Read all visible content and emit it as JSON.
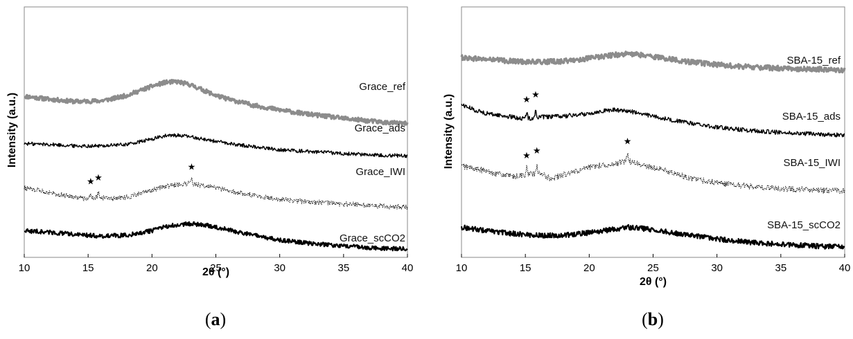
{
  "chart_data": [
    {
      "type": "line",
      "panel_label": "a",
      "xlabel": "2θ (°)",
      "ylabel": "Intensity (a.u.)",
      "xlim": [
        10,
        40
      ],
      "x_ticks": [
        10,
        15,
        20,
        25,
        30,
        35,
        40
      ],
      "grid": false,
      "legend": "labels placed beside each trace",
      "series": [
        {
          "name": "Grace_ref",
          "color": "#8c8c8c",
          "style": "thick",
          "x": [
            10,
            12,
            14,
            16,
            17,
            18,
            19,
            20,
            21,
            22,
            23,
            24,
            25,
            26,
            28,
            30,
            32,
            35,
            38,
            40
          ],
          "y": [
            100,
            98,
            96.5,
            97,
            98.5,
            100.5,
            103.5,
            106.5,
            109,
            109.5,
            107.5,
            104,
            100.5,
            98,
            94,
            91,
            88.5,
            85.5,
            83,
            82
          ],
          "markers": []
        },
        {
          "name": "Grace_ads",
          "color": "#000000",
          "style": "solid",
          "x": [
            10,
            12,
            14,
            16,
            18,
            19,
            20,
            21,
            22,
            23,
            24,
            25,
            26,
            28,
            30,
            32,
            35,
            38,
            40
          ],
          "y": [
            69,
            68.5,
            67.5,
            67.5,
            68.5,
            70,
            72,
            74,
            74.5,
            73.5,
            72,
            70.5,
            69,
            67,
            65,
            64,
            62.5,
            61.5,
            61
          ],
          "markers": []
        },
        {
          "name": "Grace_IWI",
          "color": "#000000",
          "style": "dotted",
          "x": [
            10,
            12,
            14,
            15,
            15.6,
            16,
            17,
            18,
            19,
            20,
            21,
            22,
            23,
            24,
            25,
            26,
            28,
            30,
            32,
            35,
            38,
            40
          ],
          "y": [
            40,
            37,
            34,
            33,
            34,
            33.5,
            33,
            34,
            36,
            38.5,
            41,
            42,
            43,
            41.5,
            40,
            38,
            35,
            32.5,
            31,
            29.5,
            28,
            27.5
          ],
          "markers": [
            15.2,
            15.8,
            23.1
          ]
        },
        {
          "name": "Grace_scCO2",
          "color": "#000000",
          "style": "thick",
          "x": [
            10,
            12,
            14,
            16,
            18,
            20,
            21,
            22,
            23,
            24,
            25,
            26,
            28,
            30,
            32,
            35,
            38,
            40
          ],
          "y": [
            12,
            11,
            9.5,
            8.5,
            9,
            12,
            14.5,
            16,
            16.5,
            16,
            14.5,
            12.5,
            9,
            6,
            4,
            2,
            0.5,
            0
          ],
          "markers": []
        }
      ]
    },
    {
      "type": "line",
      "panel_label": "b",
      "xlabel": "2θ (°)",
      "ylabel": "Intensity (a.u.)",
      "xlim": [
        10,
        40
      ],
      "x_ticks": [
        10,
        15,
        20,
        25,
        30,
        35,
        40
      ],
      "grid": false,
      "legend": "labels placed beside each trace",
      "series": [
        {
          "name": "SBA-15_ref",
          "color": "#8c8c8c",
          "style": "thick",
          "x": [
            10,
            12,
            14,
            16,
            18,
            20,
            22,
            23,
            24,
            26,
            28,
            30,
            32,
            35,
            38,
            40
          ],
          "y": [
            108,
            107,
            106,
            105.5,
            106,
            107.5,
            109.5,
            110,
            109.5,
            107.5,
            105.5,
            104,
            103,
            102,
            101.5,
            101
          ],
          "markers": []
        },
        {
          "name": "SBA-15_ads",
          "color": "#000000",
          "style": "solid",
          "x": [
            10,
            11,
            12,
            14,
            15,
            16,
            18,
            20,
            21,
            22,
            23,
            24,
            26,
            28,
            30,
            32,
            35,
            38,
            40
          ],
          "y": [
            82,
            79,
            77,
            75,
            74,
            75,
            75.5,
            77,
            78.5,
            79,
            78.5,
            77,
            74,
            71.5,
            69.5,
            68,
            66.5,
            65.5,
            65
          ],
          "markers": [
            15.1,
            15.8
          ]
        },
        {
          "name": "SBA-15_IWI",
          "color": "#000000",
          "style": "dotted",
          "x": [
            10,
            12,
            14,
            15,
            16,
            17,
            18,
            20,
            21,
            22,
            23,
            24,
            25,
            26,
            27,
            28,
            30,
            32,
            35,
            38,
            40
          ],
          "y": [
            48,
            45,
            42,
            43,
            44,
            41,
            43,
            47,
            48.5,
            49,
            51,
            48.5,
            47,
            45.5,
            43,
            41,
            38.5,
            37,
            35.5,
            34.5,
            34
          ],
          "markers": [
            15.1,
            15.9,
            23.0
          ]
        },
        {
          "name": "SBA-15_scCO2",
          "color": "#000000",
          "style": "thick",
          "x": [
            10,
            12,
            14,
            16,
            18,
            20,
            22,
            23,
            24,
            25,
            26,
            28,
            30,
            32,
            35,
            38,
            40
          ],
          "y": [
            14,
            12,
            10.5,
            9.5,
            9.5,
            11,
            13,
            14,
            13.5,
            12.5,
            11.5,
            9.5,
            7.5,
            6,
            4.5,
            3.5,
            3
          ],
          "markers": []
        }
      ]
    }
  ]
}
